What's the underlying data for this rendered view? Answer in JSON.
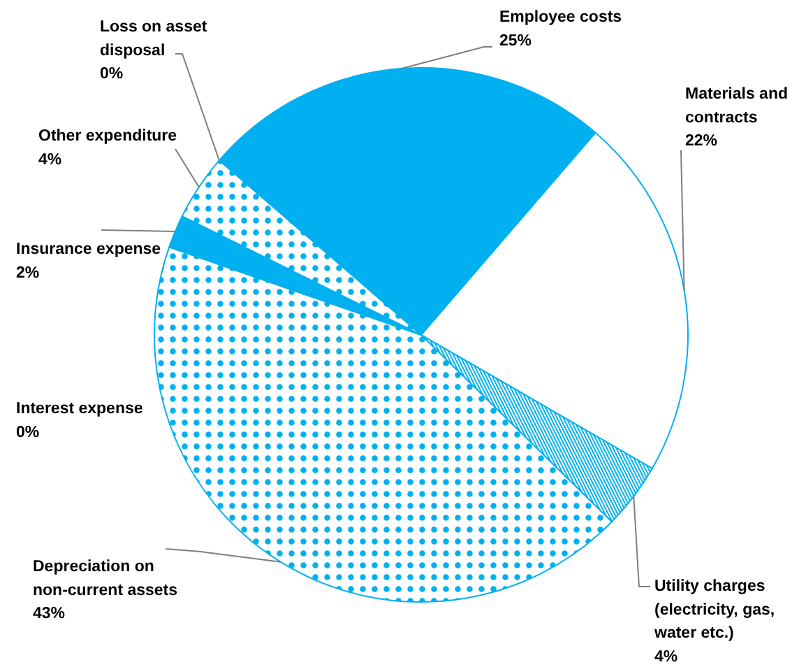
{
  "chart_data": {
    "type": "pie",
    "categories": [
      "Employee costs",
      "Materials and contracts",
      "Utility charges (electricity, gas, water etc.)",
      "Depreciation on non-current assets",
      "Interest expense",
      "Insurance expense",
      "Other expenditure",
      "Loss on asset disposal"
    ],
    "values": [
      25,
      22,
      4,
      43,
      0,
      2,
      4,
      0
    ],
    "colors": [
      "#00b0f0",
      "#ffffff",
      "#ffffff",
      "#ffffff",
      "#ffffff",
      "#00b0f0",
      "#ffffff",
      "#ffffff"
    ],
    "value_labels": [
      "25%",
      "22%",
      "4%",
      "43%",
      "0%",
      "2%",
      "4%",
      "0%"
    ]
  }
}
